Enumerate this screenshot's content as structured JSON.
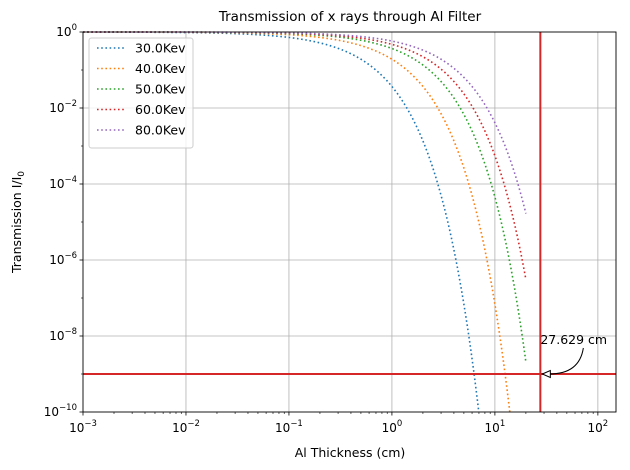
{
  "chart_data": {
    "type": "line",
    "title": "Transmission of x rays through Al Filter",
    "xlabel": "Al Thickness (cm)",
    "ylabel": "Transmission I/I",
    "ylabel_sub": "0",
    "xscale": "log",
    "yscale": "log",
    "xlim": [
      0.001,
      150
    ],
    "ylim": [
      1e-10,
      1
    ],
    "grid": true,
    "legend_position": "top-left",
    "x_ticks": [
      {
        "value": 0.001,
        "base": "10",
        "exp": "−3"
      },
      {
        "value": 0.01,
        "base": "10",
        "exp": "−2"
      },
      {
        "value": 0.1,
        "base": "10",
        "exp": "−1"
      },
      {
        "value": 1,
        "base": "10",
        "exp": "0"
      },
      {
        "value": 10,
        "base": "10",
        "exp": "1"
      },
      {
        "value": 100,
        "base": "10",
        "exp": "2"
      }
    ],
    "y_ticks": [
      {
        "value": 1e-10,
        "base": "10",
        "exp": "−10"
      },
      {
        "value": 1e-08,
        "base": "10",
        "exp": "−8"
      },
      {
        "value": 1e-06,
        "base": "10",
        "exp": "−6"
      },
      {
        "value": 0.0001,
        "base": "10",
        "exp": "−4"
      },
      {
        "value": 0.01,
        "base": "10",
        "exp": "−2"
      },
      {
        "value": 1,
        "base": "10",
        "exp": "0"
      }
    ],
    "series": [
      {
        "name": "30.0Kev",
        "color": "#1f77b4",
        "attenuation_per_cm": 3.3,
        "x_end": 20
      },
      {
        "name": "40.0Kev",
        "color": "#ff7f0e",
        "attenuation_per_cm": 1.65,
        "x_end": 20
      },
      {
        "name": "50.0Kev",
        "color": "#2ca02c",
        "attenuation_per_cm": 1.0,
        "x_end": 20
      },
      {
        "name": "60.0Kev",
        "color": "#d62728",
        "attenuation_per_cm": 0.75,
        "x_end": 20
      },
      {
        "name": "80.0Kev",
        "color": "#9467bd",
        "attenuation_per_cm": 0.55,
        "x_end": 20
      }
    ],
    "reference_lines": {
      "color": "#d62728",
      "horizontal_y": 1e-09,
      "vertical_x": 27.629
    },
    "annotation": {
      "text": "27.629 cm",
      "point_x": 27.629,
      "point_y": 1e-09
    }
  }
}
